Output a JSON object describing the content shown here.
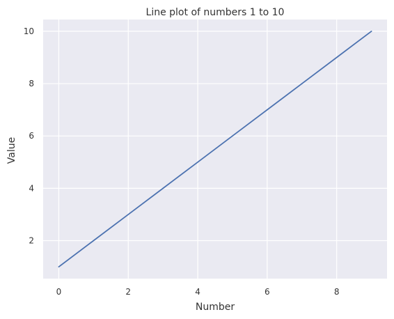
{
  "chart_data": {
    "type": "line",
    "title": "Line plot of numbers 1 to 10",
    "xlabel": "Number",
    "ylabel": "Value",
    "x": [
      0,
      1,
      2,
      3,
      4,
      5,
      6,
      7,
      8,
      9
    ],
    "series": [
      {
        "values": [
          1,
          2,
          3,
          4,
          5,
          6,
          7,
          8,
          9,
          10
        ],
        "color": "#4c72b0"
      }
    ],
    "xlim": [
      -0.45,
      9.45
    ],
    "ylim": [
      0.55,
      10.45
    ],
    "xticks": [
      0,
      2,
      4,
      6,
      8
    ],
    "yticks": [
      2,
      4,
      6,
      8,
      10
    ],
    "grid": true,
    "legend": "none",
    "background": "#eaeaf2",
    "grid_color": "#ffffff"
  }
}
